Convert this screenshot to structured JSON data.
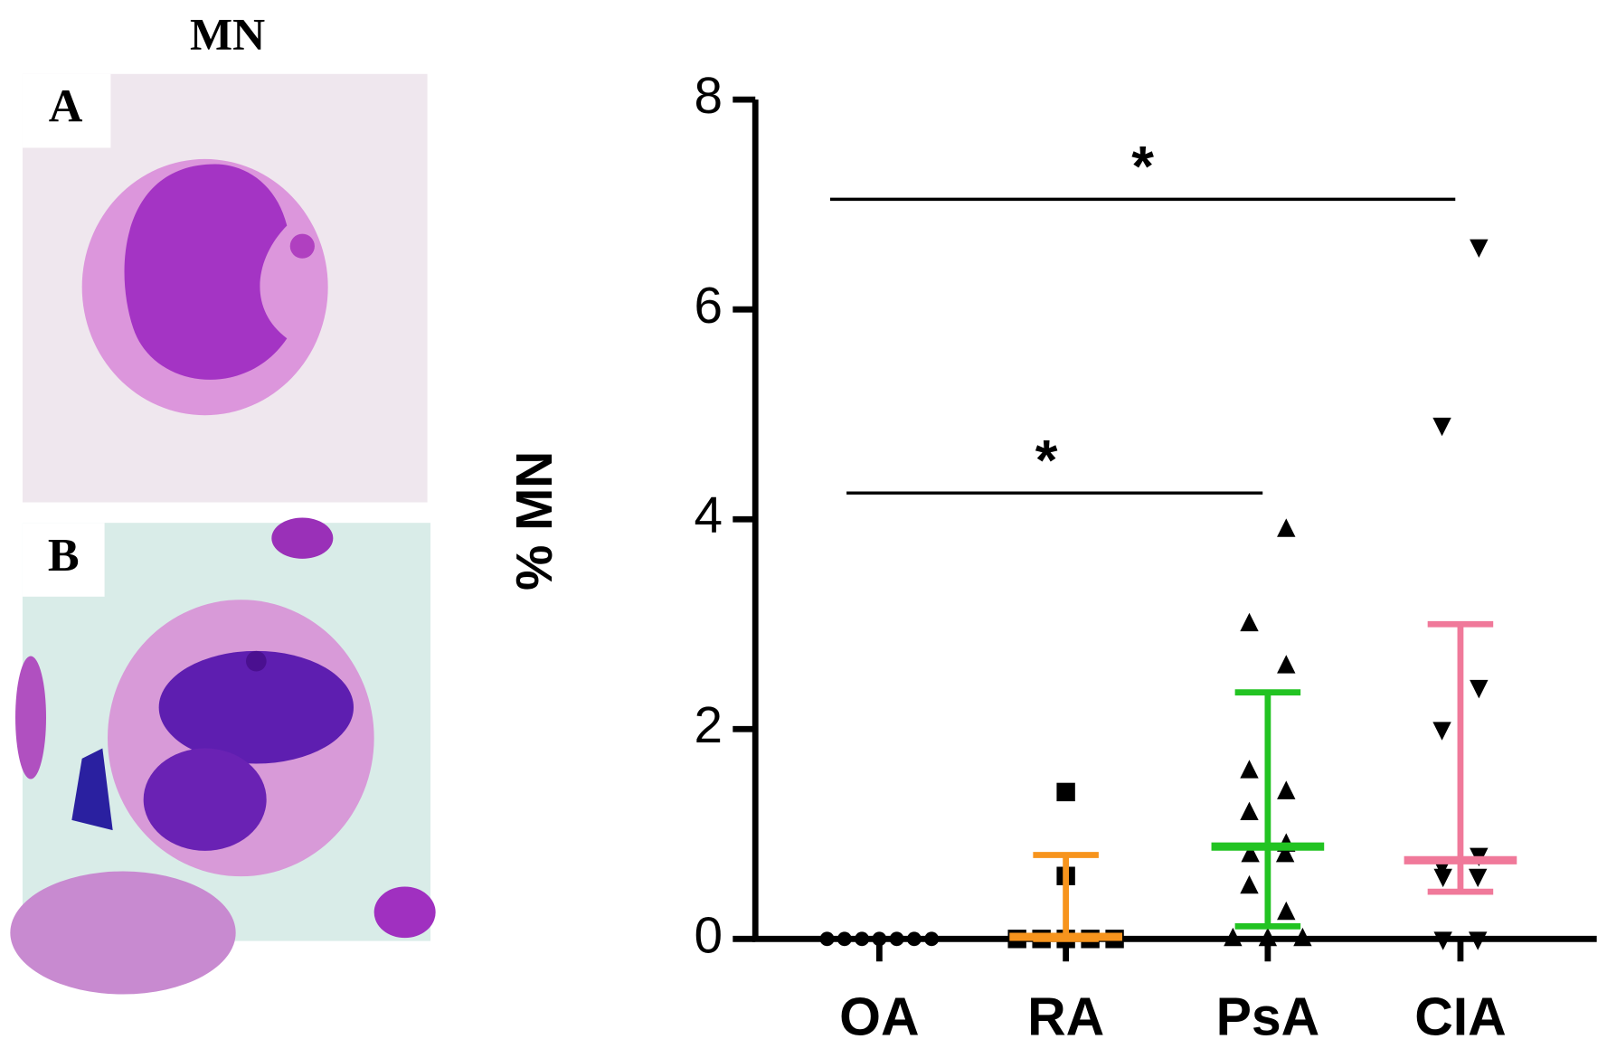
{
  "panel_title": "MN",
  "panels": [
    {
      "label": "A"
    },
    {
      "label": "B"
    }
  ],
  "chart_data": {
    "type": "scatter",
    "y_label": "% MN",
    "categories": [
      "OA",
      "RA",
      "PsA",
      "CIA"
    ],
    "markers": [
      "circle",
      "square",
      "triangle-up",
      "triangle-down"
    ],
    "colors": [
      "#000000",
      "#f7941d",
      "#22c322",
      "#f0799a"
    ],
    "values": [
      [
        0,
        0,
        0,
        0,
        0,
        0,
        0
      ],
      [
        0,
        0,
        0,
        0,
        0,
        0.6,
        1.4
      ],
      [
        0,
        0,
        0,
        0.25,
        0.5,
        0.8,
        0.8,
        0.9,
        1.2,
        1.4,
        1.6,
        2.6,
        3.0,
        3.9
      ],
      [
        0,
        0,
        0.6,
        0.6,
        0.7,
        0.8,
        2.0,
        2.4,
        4.9,
        6.6
      ]
    ],
    "medians": [
      0,
      0.02,
      0.88,
      0.75
    ],
    "error_low": [
      0,
      0,
      0.12,
      0.45
    ],
    "error_high": [
      0,
      0.8,
      2.35,
      3.0
    ],
    "annotations": [
      {
        "label": "*",
        "from": 0,
        "to": 3,
        "y": 7.05
      },
      {
        "label": "*",
        "from": 0,
        "to": 2,
        "y": 4.25
      }
    ],
    "ylim": [
      0,
      8
    ],
    "yticks": [
      0,
      2,
      4,
      6,
      8
    ]
  }
}
